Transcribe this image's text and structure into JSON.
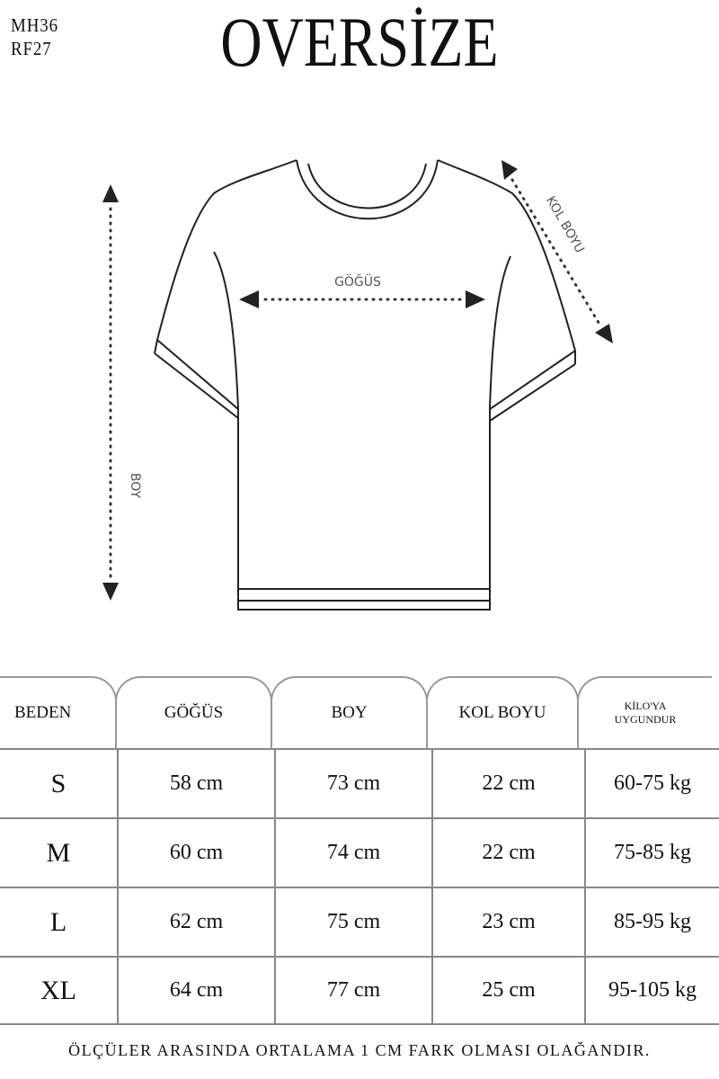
{
  "codes": [
    "MH36",
    "RF27"
  ],
  "title": "OVERSİZE",
  "diagram": {
    "chest_label": "GÖĞÜS",
    "length_label": "BOY",
    "sleeve_label": "KOL BOYU"
  },
  "table": {
    "headers": [
      "BEDEN",
      "GÖĞÜS",
      "BOY",
      "KOL BOYU",
      "KİLO'YA",
      "UYGUNDUR"
    ],
    "rows": [
      [
        "S",
        "58 cm",
        "73 cm",
        "22  cm",
        "60-75 kg"
      ],
      [
        "M",
        "60 cm",
        "74 cm",
        "22 cm",
        "75-85 kg"
      ],
      [
        "L",
        "62 cm",
        "75 cm",
        "23 cm",
        "85-95 kg"
      ],
      [
        "XL",
        "64 cm",
        "77 cm",
        "25 cm",
        "95-105 kg"
      ]
    ]
  },
  "note": "ÖLÇÜLER ARASINDA ORTALAMA 1 CM FARK OLMASI OLAĞANDIR."
}
